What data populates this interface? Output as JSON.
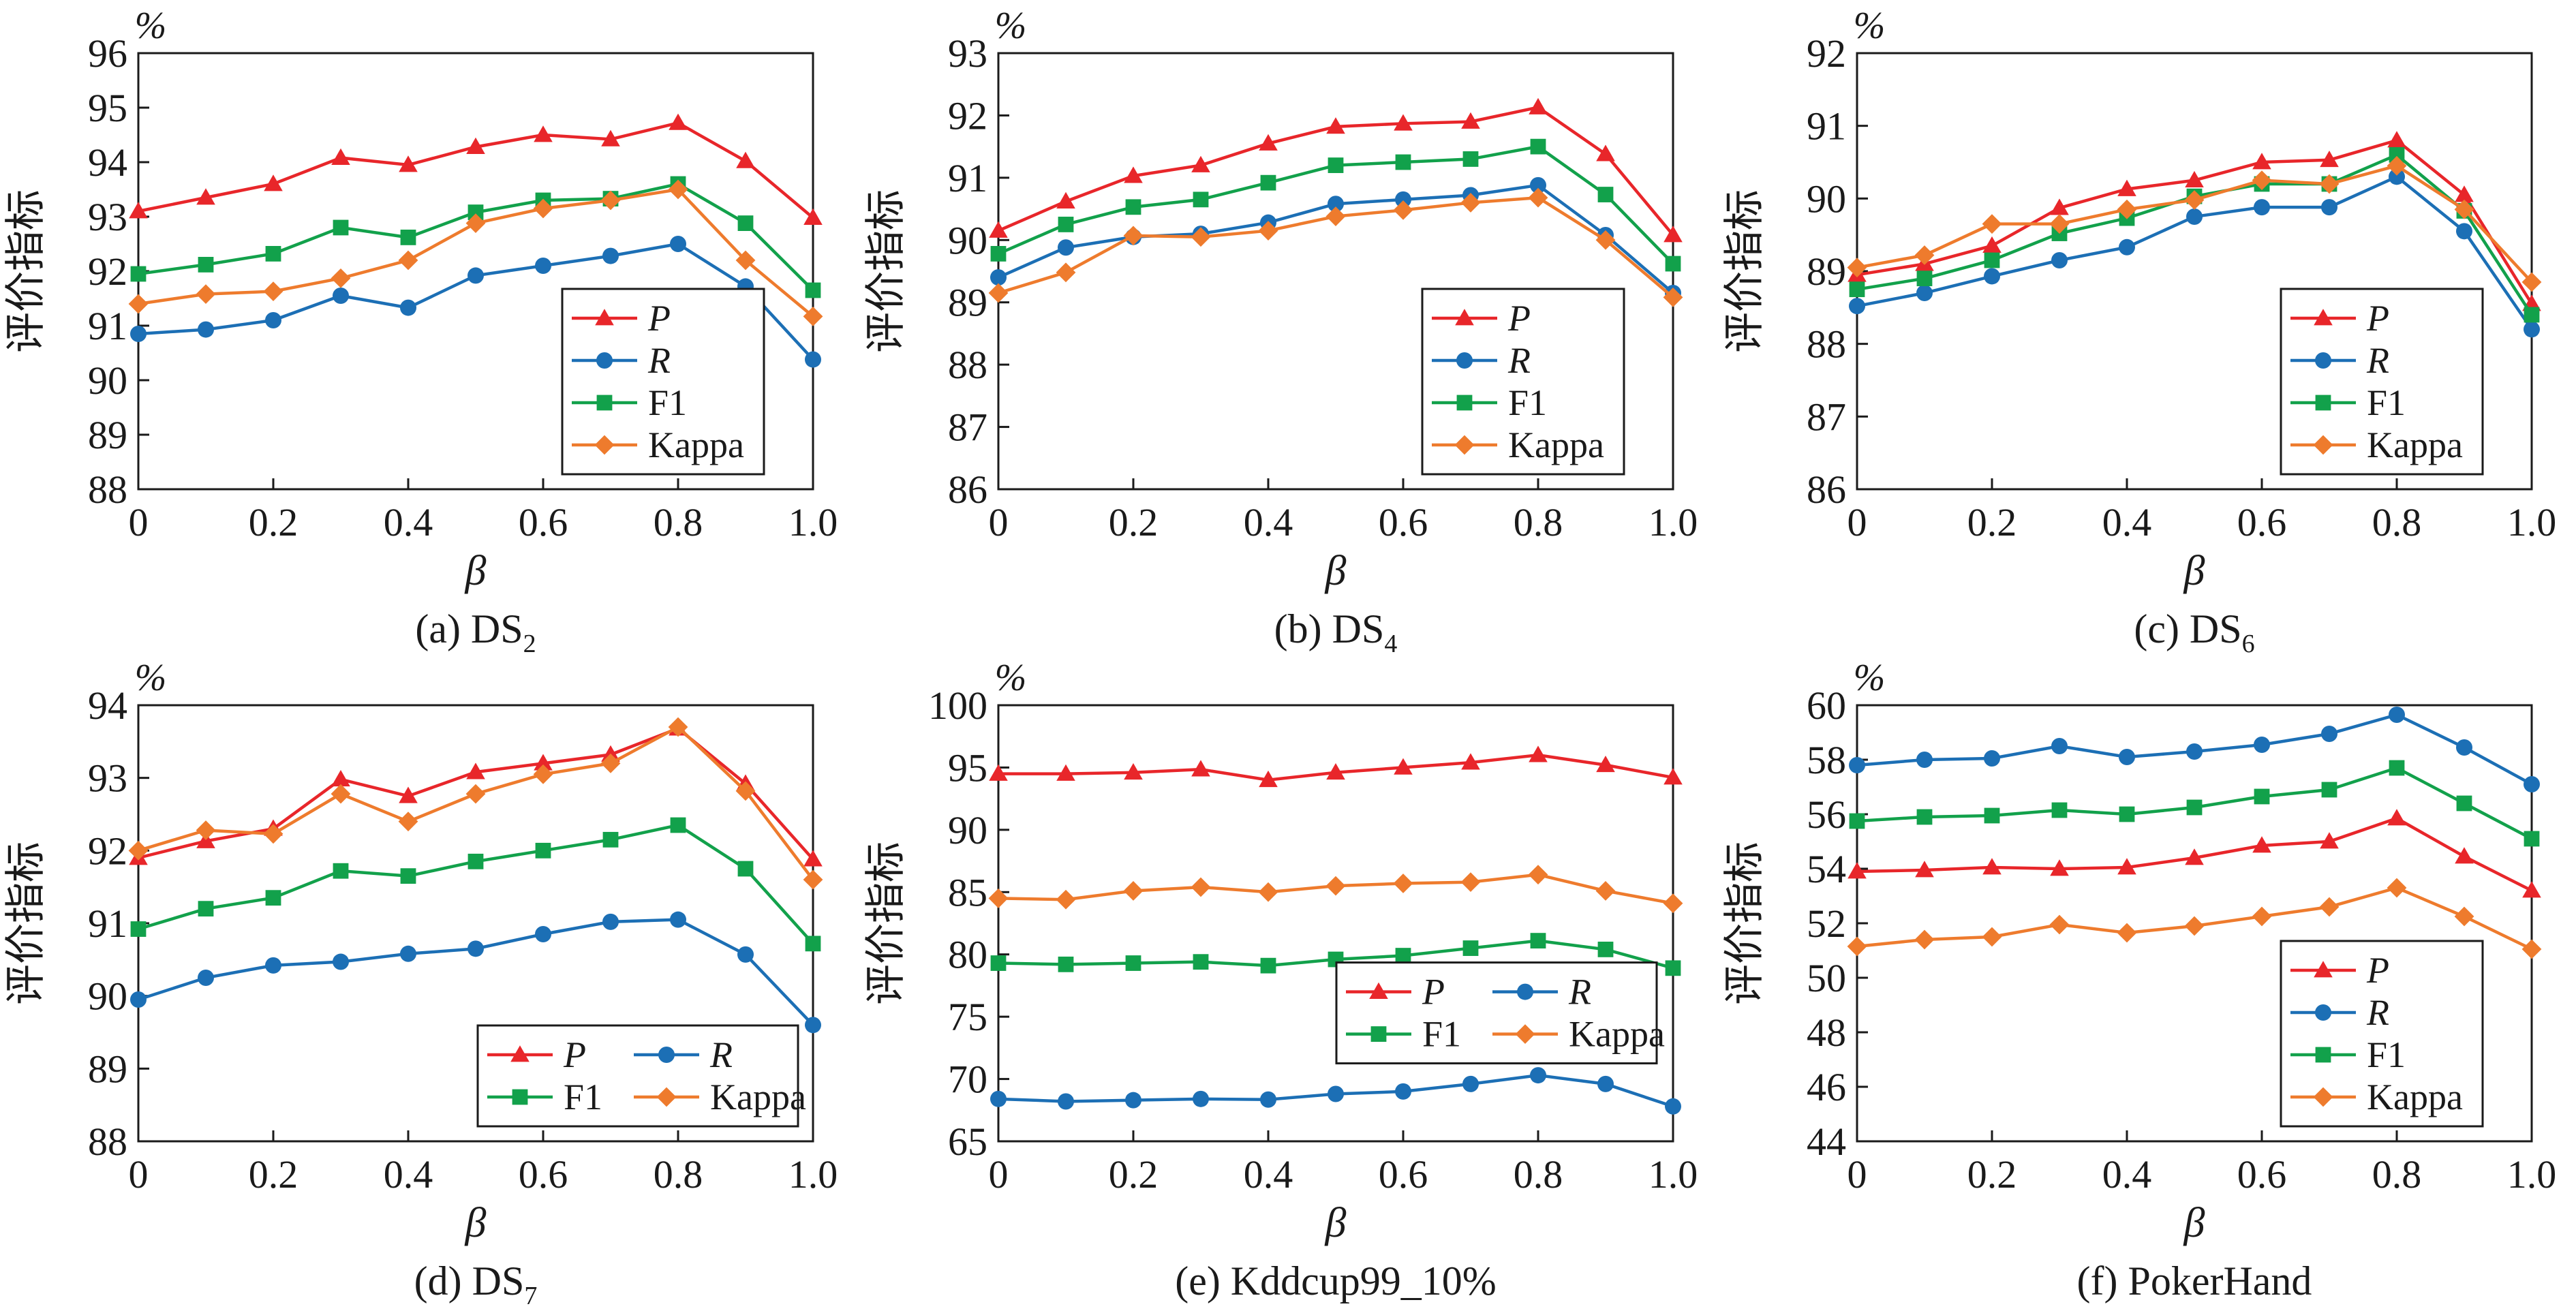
{
  "colors": {
    "P": "#e8262a",
    "R": "#1c6fb5",
    "F1": "#12a14b",
    "Kappa": "#ee7b2d"
  },
  "legend_labels": {
    "P": "P",
    "R": "R",
    "F1": "F1",
    "Kappa": "Kappa"
  },
  "chart_data": [
    {
      "type": "line",
      "caption": "(a) DS",
      "caption_sub": "2",
      "unit": "%",
      "ylabel": "评价指标",
      "xlabel": "β",
      "x": [
        0,
        0.1,
        0.2,
        0.3,
        0.4,
        0.5,
        0.6,
        0.7,
        0.8,
        0.9,
        1.0
      ],
      "xticks": [
        "0",
        "0.2",
        "0.4",
        "0.6",
        "0.8",
        "1.0"
      ],
      "ylim": [
        88,
        96
      ],
      "yticks": [
        "88",
        "89",
        "90",
        "91",
        "92",
        "93",
        "94",
        "95",
        "96"
      ],
      "legend": "lower-right-column",
      "series": [
        {
          "name": "P",
          "marker": "triangle",
          "values": [
            93.1,
            93.35,
            93.6,
            94.08,
            93.95,
            94.28,
            94.5,
            94.42,
            94.72,
            94.02,
            92.98
          ]
        },
        {
          "name": "R",
          "marker": "circle",
          "values": [
            90.85,
            90.93,
            91.1,
            91.55,
            91.33,
            91.92,
            92.1,
            92.28,
            92.5,
            91.72,
            90.38
          ]
        },
        {
          "name": "F1",
          "marker": "square",
          "values": [
            91.95,
            92.12,
            92.32,
            92.8,
            92.62,
            93.08,
            93.3,
            93.33,
            93.6,
            92.88,
            91.65
          ]
        },
        {
          "name": "Kappa",
          "marker": "diamond",
          "values": [
            91.4,
            91.58,
            91.63,
            91.87,
            92.2,
            92.88,
            93.15,
            93.3,
            93.5,
            92.2,
            91.17
          ]
        }
      ]
    },
    {
      "type": "line",
      "caption": "(b) DS",
      "caption_sub": "4",
      "unit": "%",
      "ylabel": "评价指标",
      "xlabel": "β",
      "x": [
        0,
        0.1,
        0.2,
        0.3,
        0.4,
        0.5,
        0.6,
        0.7,
        0.8,
        0.9,
        1.0
      ],
      "xticks": [
        "0",
        "0.2",
        "0.4",
        "0.6",
        "0.8",
        "1.0"
      ],
      "ylim": [
        86,
        93
      ],
      "yticks": [
        "86",
        "87",
        "88",
        "89",
        "90",
        "91",
        "92",
        "93"
      ],
      "legend": "lower-right-column",
      "series": [
        {
          "name": "P",
          "marker": "triangle",
          "values": [
            90.15,
            90.62,
            91.03,
            91.2,
            91.55,
            91.82,
            91.87,
            91.9,
            92.13,
            91.38,
            90.08
          ]
        },
        {
          "name": "R",
          "marker": "circle",
          "values": [
            89.4,
            89.88,
            90.05,
            90.1,
            90.28,
            90.58,
            90.65,
            90.72,
            90.88,
            90.08,
            89.15
          ]
        },
        {
          "name": "F1",
          "marker": "square",
          "values": [
            89.78,
            90.25,
            90.53,
            90.65,
            90.92,
            91.2,
            91.25,
            91.3,
            91.5,
            90.73,
            89.62
          ]
        },
        {
          "name": "Kappa",
          "marker": "diamond",
          "values": [
            89.15,
            89.48,
            90.07,
            90.05,
            90.15,
            90.38,
            90.48,
            90.6,
            90.68,
            90.0,
            89.08
          ]
        }
      ]
    },
    {
      "type": "line",
      "caption": "(c) DS",
      "caption_sub": "6",
      "unit": "%",
      "ylabel": "评价指标",
      "xlabel": "β",
      "x": [
        0,
        0.1,
        0.2,
        0.3,
        0.4,
        0.5,
        0.6,
        0.7,
        0.8,
        0.9,
        1.0
      ],
      "xticks": [
        "0",
        "0.2",
        "0.4",
        "0.6",
        "0.8",
        "1.0"
      ],
      "ylim": [
        86,
        92
      ],
      "yticks": [
        "86",
        "87",
        "88",
        "89",
        "90",
        "91",
        "92"
      ],
      "legend": "lower-right-column",
      "series": [
        {
          "name": "P",
          "marker": "triangle",
          "values": [
            88.95,
            89.1,
            89.35,
            89.87,
            90.13,
            90.25,
            90.5,
            90.53,
            90.8,
            90.05,
            88.55
          ]
        },
        {
          "name": "R",
          "marker": "circle",
          "values": [
            88.52,
            88.7,
            88.93,
            89.15,
            89.33,
            89.75,
            89.88,
            89.88,
            90.3,
            89.55,
            88.2
          ]
        },
        {
          "name": "F1",
          "marker": "square",
          "values": [
            88.75,
            88.9,
            89.15,
            89.52,
            89.73,
            90.03,
            90.2,
            90.2,
            90.6,
            89.83,
            88.4
          ]
        },
        {
          "name": "Kappa",
          "marker": "diamond",
          "values": [
            89.05,
            89.22,
            89.65,
            89.65,
            89.85,
            89.98,
            90.25,
            90.2,
            90.45,
            89.85,
            88.85
          ]
        }
      ]
    },
    {
      "type": "line",
      "caption": "(d) DS",
      "caption_sub": "7",
      "unit": "%",
      "ylabel": "评价指标",
      "xlabel": "β",
      "x": [
        0,
        0.1,
        0.2,
        0.3,
        0.4,
        0.5,
        0.6,
        0.7,
        0.8,
        0.9,
        1.0
      ],
      "xticks": [
        "0",
        "0.2",
        "0.4",
        "0.6",
        "0.8",
        "1.0"
      ],
      "ylim": [
        88,
        94
      ],
      "yticks": [
        "88",
        "89",
        "90",
        "91",
        "92",
        "93",
        "94"
      ],
      "legend": "lower-right-grid",
      "series": [
        {
          "name": "P",
          "marker": "triangle",
          "values": [
            91.9,
            92.13,
            92.3,
            92.98,
            92.75,
            93.08,
            93.2,
            93.32,
            93.68,
            92.92,
            91.88
          ]
        },
        {
          "name": "R",
          "marker": "circle",
          "values": [
            89.95,
            90.25,
            90.42,
            90.47,
            90.58,
            90.65,
            90.85,
            91.02,
            91.05,
            90.57,
            89.6
          ]
        },
        {
          "name": "F1",
          "marker": "square",
          "values": [
            90.92,
            91.2,
            91.35,
            91.72,
            91.65,
            91.85,
            92.0,
            92.15,
            92.35,
            91.75,
            90.72
          ]
        },
        {
          "name": "Kappa",
          "marker": "diamond",
          "values": [
            92.0,
            92.28,
            92.23,
            92.78,
            92.4,
            92.78,
            93.05,
            93.2,
            93.7,
            92.82,
            91.6
          ]
        }
      ]
    },
    {
      "type": "line",
      "caption": "(e) Kddcup99_10%",
      "caption_sub": "",
      "unit": "%",
      "ylabel": "评价指标",
      "xlabel": "β",
      "x": [
        0,
        0.1,
        0.2,
        0.3,
        0.4,
        0.5,
        0.6,
        0.7,
        0.8,
        0.9,
        1.0
      ],
      "xticks": [
        "0",
        "0.2",
        "0.4",
        "0.6",
        "0.8",
        "1.0"
      ],
      "ylim": [
        65,
        100
      ],
      "yticks": [
        "65",
        "70",
        "75",
        "80",
        "85",
        "90",
        "95",
        "100"
      ],
      "legend": "mid-right-grid",
      "series": [
        {
          "name": "P",
          "marker": "triangle",
          "values": [
            94.5,
            94.5,
            94.6,
            94.85,
            94.0,
            94.6,
            95.0,
            95.4,
            96.0,
            95.2,
            94.2
          ]
        },
        {
          "name": "R",
          "marker": "circle",
          "values": [
            68.4,
            68.2,
            68.3,
            68.4,
            68.35,
            68.8,
            69.0,
            69.6,
            70.3,
            69.6,
            67.8
          ]
        },
        {
          "name": "F1",
          "marker": "square",
          "values": [
            79.3,
            79.2,
            79.3,
            79.4,
            79.1,
            79.6,
            79.9,
            80.5,
            81.1,
            80.4,
            78.9
          ]
        },
        {
          "name": "Kappa",
          "marker": "diamond",
          "values": [
            84.5,
            84.4,
            85.1,
            85.4,
            85.0,
            85.5,
            85.7,
            85.8,
            86.4,
            85.1,
            84.1
          ]
        }
      ]
    },
    {
      "type": "line",
      "caption": "(f) PokerHand",
      "caption_sub": "",
      "unit": "%",
      "ylabel": "评价指标",
      "xlabel": "β",
      "x": [
        0,
        0.1,
        0.2,
        0.3,
        0.4,
        0.5,
        0.6,
        0.7,
        0.8,
        0.9,
        1.0
      ],
      "xticks": [
        "0",
        "0.2",
        "0.4",
        "0.6",
        "0.8",
        "1.0"
      ],
      "ylim": [
        44,
        60
      ],
      "yticks": [
        "44",
        "46",
        "48",
        "50",
        "52",
        "54",
        "56",
        "58",
        "60"
      ],
      "legend": "lower-right-column",
      "series": [
        {
          "name": "P",
          "marker": "triangle",
          "values": [
            53.9,
            53.95,
            54.05,
            54.0,
            54.05,
            54.4,
            54.85,
            55.0,
            55.85,
            54.45,
            53.2
          ]
        },
        {
          "name": "R",
          "marker": "circle",
          "values": [
            57.8,
            58.0,
            58.05,
            58.5,
            58.1,
            58.3,
            58.55,
            58.95,
            59.65,
            58.45,
            57.1
          ]
        },
        {
          "name": "F1",
          "marker": "square",
          "values": [
            55.75,
            55.9,
            55.95,
            56.15,
            56.0,
            56.25,
            56.65,
            56.9,
            57.7,
            56.4,
            55.1
          ]
        },
        {
          "name": "Kappa",
          "marker": "diamond",
          "values": [
            51.15,
            51.4,
            51.5,
            51.95,
            51.65,
            51.9,
            52.25,
            52.6,
            53.3,
            52.25,
            51.05
          ]
        }
      ]
    }
  ]
}
